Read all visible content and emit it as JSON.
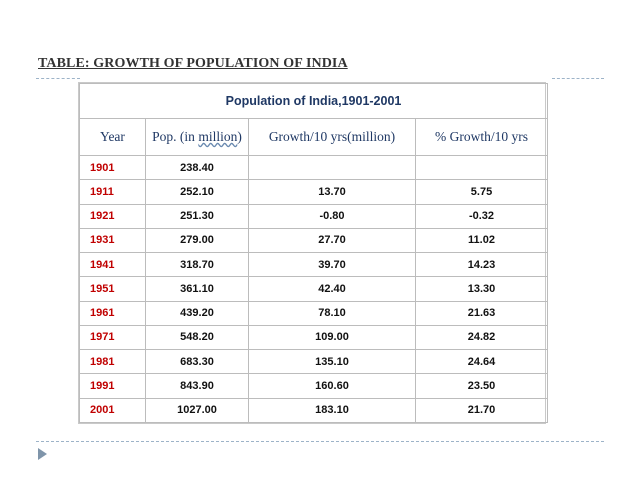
{
  "slide": {
    "title": "TABLE: GROWTH OF POPULATION OF INDIA"
  },
  "table": {
    "caption": "Population of India,1901-2001",
    "headers": {
      "year": "Year",
      "pop_prefix": "Pop. (in ",
      "pop_unit": "million",
      "pop_suffix": ")",
      "growth": "Growth/10 yrs(million)",
      "pct": "% Growth/10 yrs"
    },
    "rows": [
      {
        "year": "1901",
        "pop": "238.40",
        "growth": "",
        "pct": ""
      },
      {
        "year": "1911",
        "pop": "252.10",
        "growth": "13.70",
        "pct": "5.75"
      },
      {
        "year": "1921",
        "pop": "251.30",
        "growth": "-0.80",
        "pct": "-0.32"
      },
      {
        "year": "1931",
        "pop": "279.00",
        "growth": "27.70",
        "pct": "11.02"
      },
      {
        "year": "1941",
        "pop": "318.70",
        "growth": "39.70",
        "pct": "14.23"
      },
      {
        "year": "1951",
        "pop": "361.10",
        "growth": "42.40",
        "pct": "13.30"
      },
      {
        "year": "1961",
        "pop": "439.20",
        "growth": "78.10",
        "pct": "21.63"
      },
      {
        "year": "1971",
        "pop": "548.20",
        "growth": "109.00",
        "pct": "24.82"
      },
      {
        "year": "1981",
        "pop": "683.30",
        "growth": "135.10",
        "pct": "24.64"
      },
      {
        "year": "1991",
        "pop": "843.90",
        "growth": "160.60",
        "pct": "23.50"
      },
      {
        "year": "2001",
        "pop": "1027.00",
        "growth": "183.10",
        "pct": "21.70"
      }
    ]
  },
  "colors": {
    "header_text": "#1f3864",
    "year_text": "#c00000",
    "rule": "#9db3c8",
    "bullet": "#7f95aa"
  },
  "icons": {
    "bullet": "triangle-bullet-icon"
  }
}
